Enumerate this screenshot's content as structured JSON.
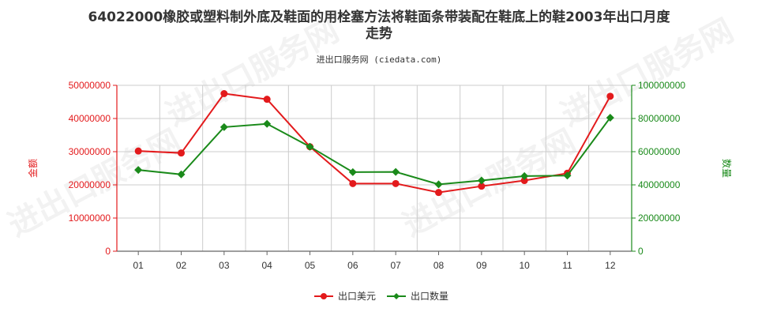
{
  "title_line1": "64022000橡胶或塑料制外底及鞋面的用栓塞方法将鞋面条带装配在鞋底上的鞋2003年出口月度",
  "title_line2": "走势",
  "subtitle": "进出口服务网 (ciedata.com)",
  "watermark": "进出口服务网",
  "colors": {
    "left": "#e31a1c",
    "right": "#1a8a1a",
    "grid": "#cccccc"
  },
  "chart_data": {
    "type": "line",
    "categories": [
      "01",
      "02",
      "03",
      "04",
      "05",
      "06",
      "07",
      "08",
      "09",
      "10",
      "11",
      "12"
    ],
    "series": [
      {
        "name": "出口美元",
        "axis": "left",
        "color": "#e31a1c",
        "marker": "circle",
        "values": [
          30200000,
          29600000,
          47500000,
          45800000,
          31500000,
          20400000,
          20400000,
          17700000,
          19600000,
          21300000,
          23500000,
          46700000
        ]
      },
      {
        "name": "出口数量",
        "axis": "right",
        "color": "#1a8a1a",
        "marker": "diamond",
        "values": [
          49000000,
          46300000,
          74800000,
          76800000,
          63000000,
          47700000,
          47800000,
          40300000,
          42600000,
          45300000,
          45600000,
          80500000
        ]
      }
    ],
    "y_left": {
      "label": "金额",
      "min": 0,
      "max": 50000000,
      "ticks": [
        "0",
        "10000000",
        "20000000",
        "30000000",
        "40000000",
        "50000000"
      ]
    },
    "y_right": {
      "label": "数量",
      "min": 0,
      "max": 100000000,
      "ticks": [
        "0",
        "20000000",
        "40000000",
        "60000000",
        "80000000",
        "100000000"
      ]
    },
    "grid": true,
    "legend_position": "bottom"
  }
}
